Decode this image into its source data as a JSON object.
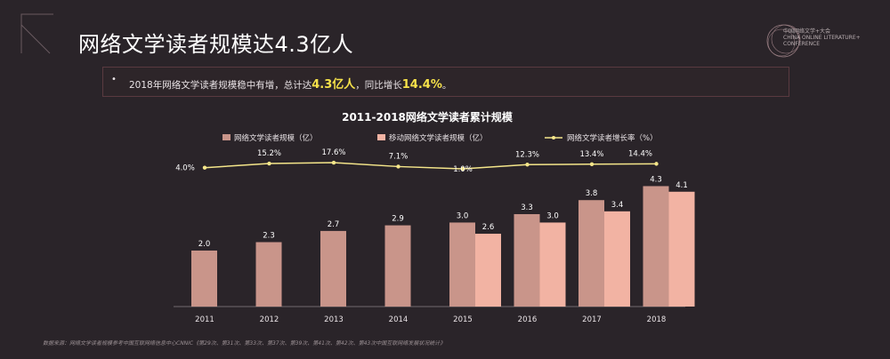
{
  "header": {
    "title": "网络文学读者规模达4.3亿人",
    "summary_prefix": "2018年网络文学读者规模稳中有增，总计达",
    "summary_value1": "4.3亿人",
    "summary_middle": "，同比增长",
    "summary_value2": "14.4%",
    "summary_suffix": "。",
    "bullet": "•"
  },
  "logo": {
    "line1": "中国网络文学+大会",
    "line2": "CHINA ONLINE LITERATURE+",
    "line3": "CONFERENCE"
  },
  "source": "数据来源：网络文学读者规模参考中国互联网络信息中心CNNIC《第29次、第31次、第33次、第37次、第39次、第41次、第42次、第43次中国互联网络发展状况统计》",
  "colors": {
    "series1": "#c9958a",
    "series2": "#f2b3a3",
    "line": "#f5e68a",
    "background": "#2a2429"
  },
  "chart_data": {
    "type": "bar",
    "title": "2011-2018网络文学读者累计规模",
    "categories": [
      "2011",
      "2012",
      "2013",
      "2014",
      "2015",
      "2016",
      "2017",
      "2018"
    ],
    "series": [
      {
        "name": "网络文学读者规模（亿）",
        "values": [
          2.0,
          2.3,
          2.7,
          2.9,
          3.0,
          3.3,
          3.8,
          4.3
        ]
      },
      {
        "name": "移动网络文学读者规模（亿）",
        "values": [
          null,
          null,
          null,
          null,
          2.6,
          3.0,
          3.4,
          4.1
        ]
      }
    ],
    "line_series": {
      "name": "网络文学读者增长率（%）",
      "values": [
        4.0,
        15.2,
        17.6,
        7.1,
        1.0,
        12.3,
        13.4,
        14.4
      ],
      "labels": [
        "4.0%",
        "15.2%",
        "17.6%",
        "7.1%",
        "1.0%",
        "12.3%",
        "13.4%",
        "14.4%"
      ]
    },
    "bar_labels": {
      "series1": [
        "2.0",
        "2.3",
        "2.7",
        "2.9",
        "3.0",
        "3.3",
        "3.8",
        "4.3"
      ],
      "series2": [
        "",
        "",
        "",
        "",
        "2.6",
        "3.0",
        "3.4",
        "4.1"
      ]
    },
    "ylim": [
      0,
      4.6
    ],
    "legend": "top",
    "grid": false
  }
}
